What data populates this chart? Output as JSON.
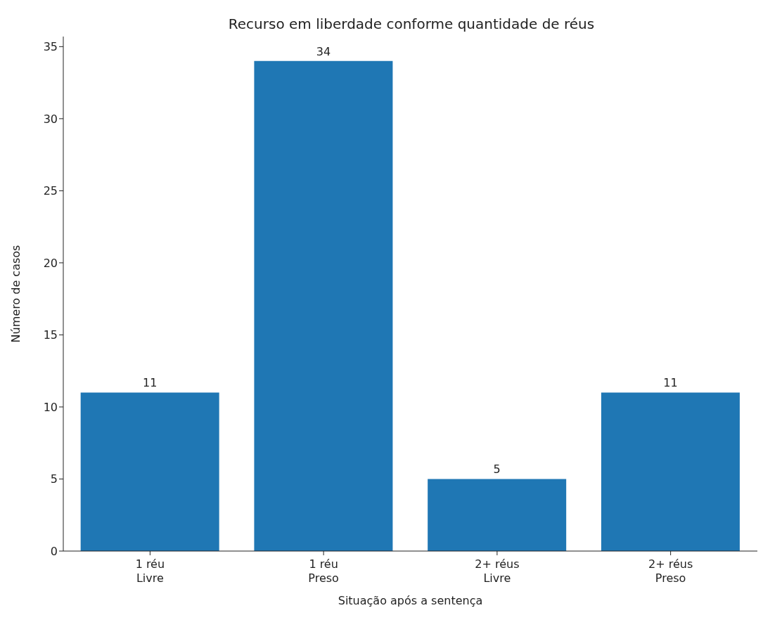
{
  "chart_data": {
    "type": "bar",
    "title": "Recurso em liberdade conforme quantidade de réus",
    "xlabel": "Situação após a sentença",
    "ylabel": "Número de casos",
    "categories": [
      "1 réu\nLivre",
      "1 réu\nPreso",
      "2+ réus\nLivre",
      "2+ réus\nPreso"
    ],
    "values": [
      11,
      34,
      5,
      11
    ],
    "color": "#1f77b4",
    "ylim": [
      0,
      35.7
    ],
    "yticks": [
      0,
      5,
      10,
      15,
      20,
      25,
      30,
      35
    ],
    "grid": false,
    "data_labels": true
  }
}
